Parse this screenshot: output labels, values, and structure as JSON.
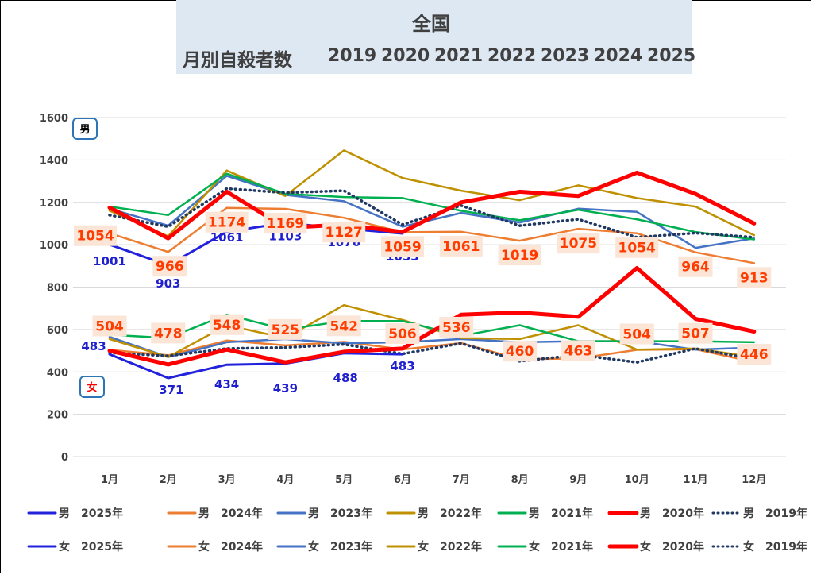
{
  "header": {
    "title": "全国",
    "subtitle": "月別自殺者数",
    "years": [
      "2019",
      "2020",
      "2021",
      "2022",
      "2023",
      "2024",
      "2025"
    ]
  },
  "badges": {
    "male": "男",
    "female": "女"
  },
  "chart_data": {
    "type": "line",
    "categories": [
      "1月",
      "2月",
      "3月",
      "4月",
      "5月",
      "6月",
      "7月",
      "8月",
      "9月",
      "10月",
      "11月",
      "12月"
    ],
    "ylim": [
      0,
      1600
    ],
    "yticks": [
      0,
      200,
      400,
      600,
      800,
      1000,
      1200,
      1400,
      1600
    ],
    "grid": "horizontal",
    "legend_position": "bottom",
    "series": [
      {
        "name": "男　2025年",
        "group": "male",
        "year": "2025",
        "color": "#2222dd",
        "values": [
          1001,
          903,
          1061,
          1103,
          1076,
          1053,
          null,
          null,
          null,
          null,
          null,
          null
        ]
      },
      {
        "name": "男　2024年",
        "group": "male",
        "year": "2024",
        "color": "#ed7d31",
        "values": [
          1054,
          966,
          1174,
          1169,
          1127,
          1059,
          1061,
          1019,
          1075,
          1054,
          964,
          913
        ]
      },
      {
        "name": "男　2023年",
        "group": "male",
        "year": "2023",
        "color": "#4472c4",
        "values": [
          1170,
          1090,
          1325,
          1235,
          1205,
          1085,
          1150,
          1105,
          1170,
          1155,
          985,
          1030
        ]
      },
      {
        "name": "男　2022年",
        "group": "male",
        "year": "2022",
        "color": "#bf9000",
        "values": [
          1160,
          1040,
          1350,
          1230,
          1445,
          1315,
          1255,
          1210,
          1280,
          1220,
          1180,
          1045
        ]
      },
      {
        "name": "男　2021年",
        "group": "male",
        "year": "2021",
        "color": "#00b050",
        "values": [
          1180,
          1140,
          1335,
          1240,
          1225,
          1220,
          1160,
          1115,
          1165,
          1120,
          1060,
          1025
        ]
      },
      {
        "name": "男　2020年",
        "group": "male",
        "year": "2020",
        "color": "#ff0000",
        "values": [
          1175,
          1030,
          1250,
          1080,
          1095,
          1060,
          1200,
          1250,
          1230,
          1340,
          1240,
          1100
        ]
      },
      {
        "name": "男　2019年",
        "group": "male",
        "year": "2019",
        "color": "#203864",
        "dashed": true,
        "values": [
          1140,
          1085,
          1265,
          1245,
          1255,
          1095,
          1185,
          1090,
          1120,
          1035,
          1055,
          1035
        ]
      },
      {
        "name": "女　2025年",
        "group": "female",
        "year": "2025",
        "color": "#2222dd",
        "values": [
          483,
          371,
          434,
          439,
          488,
          483,
          null,
          null,
          null,
          null,
          null,
          null
        ]
      },
      {
        "name": "女　2024年",
        "group": "female",
        "year": "2024",
        "color": "#ed7d31",
        "values": [
          504,
          478,
          548,
          525,
          542,
          506,
          536,
          460,
          463,
          504,
          507,
          446
        ]
      },
      {
        "name": "女　2023年",
        "group": "female",
        "year": "2023",
        "color": "#4472c4",
        "values": [
          565,
          470,
          540,
          555,
          535,
          540,
          555,
          540,
          545,
          545,
          505,
          515
        ]
      },
      {
        "name": "女　2022年",
        "group": "female",
        "year": "2022",
        "color": "#bf9000",
        "values": [
          555,
          470,
          620,
          560,
          715,
          645,
          560,
          555,
          620,
          505,
          510,
          470
        ]
      },
      {
        "name": "女　2021年",
        "group": "female",
        "year": "2021",
        "color": "#00b050",
        "values": [
          575,
          560,
          670,
          600,
          640,
          640,
          570,
          620,
          545,
          545,
          545,
          540
        ]
      },
      {
        "name": "女　2020年",
        "group": "female",
        "year": "2020",
        "color": "#ff0000",
        "values": [
          500,
          435,
          505,
          445,
          495,
          510,
          670,
          680,
          660,
          890,
          650,
          590
        ]
      },
      {
        "name": "女　2019年",
        "group": "female",
        "year": "2019",
        "color": "#203864",
        "dashed": true,
        "values": [
          490,
          475,
          510,
          515,
          530,
          485,
          535,
          450,
          480,
          445,
          510,
          460
        ]
      }
    ],
    "data_labels": {
      "male_2025": [
        1001,
        903,
        1061,
        1103,
        1076,
        1053
      ],
      "male_2024": [
        1054,
        966,
        1174,
        1169,
        1127,
        1059,
        1061,
        1019,
        1075,
        1054,
        964,
        913
      ],
      "female_2025": [
        483,
        371,
        434,
        439,
        488,
        483
      ],
      "female_2024": [
        504,
        478,
        548,
        525,
        542,
        506,
        536,
        460,
        463,
        504,
        507,
        446
      ]
    }
  }
}
